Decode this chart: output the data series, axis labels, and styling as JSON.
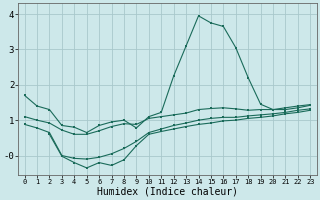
{
  "bg_color": "#cde8ea",
  "grid_color": "#a8c8cc",
  "line_color": "#1a6b5a",
  "xlabel": "Humidex (Indice chaleur)",
  "xlim": [
    -0.5,
    23.5
  ],
  "ylim": [
    -0.55,
    4.3
  ],
  "yticks": [
    0,
    1,
    2,
    3,
    4
  ],
  "ytick_labels": [
    "-0",
    "1",
    "2",
    "3",
    "4"
  ],
  "series": [
    {
      "x": [
        0,
        1,
        2,
        3,
        4,
        5,
        6,
        7,
        8,
        9,
        10,
        11,
        12,
        13,
        14,
        15,
        16,
        17,
        18,
        19,
        20,
        21,
        22,
        23
      ],
      "y": [
        1.7,
        1.4,
        1.3,
        0.85,
        0.8,
        0.65,
        0.85,
        0.95,
        1.0,
        0.78,
        1.1,
        1.22,
        2.25,
        3.1,
        3.95,
        3.75,
        3.65,
        3.05,
        2.2,
        1.45,
        1.3,
        1.3,
        1.35,
        1.42
      ]
    },
    {
      "x": [
        0,
        1,
        2,
        3,
        4,
        5,
        6,
        7,
        8,
        9,
        10,
        11,
        12,
        13,
        14,
        15,
        16,
        17,
        18,
        19,
        20,
        21,
        22,
        23
      ],
      "y": [
        1.1,
        1.0,
        0.92,
        0.72,
        0.6,
        0.6,
        0.7,
        0.82,
        0.9,
        0.88,
        1.05,
        1.1,
        1.15,
        1.2,
        1.3,
        1.33,
        1.35,
        1.32,
        1.28,
        1.3,
        1.3,
        1.35,
        1.4,
        1.44
      ]
    },
    {
      "x": [
        0,
        1,
        2,
        3,
        4,
        5,
        6,
        7,
        8,
        9,
        10,
        11,
        12,
        13,
        14,
        15,
        16,
        17,
        18,
        19,
        20,
        21,
        22,
        23
      ],
      "y": [
        0.88,
        0.78,
        0.65,
        0.0,
        -0.08,
        -0.1,
        -0.05,
        0.05,
        0.2,
        0.4,
        0.65,
        0.75,
        0.85,
        0.92,
        1.0,
        1.05,
        1.08,
        1.08,
        1.12,
        1.15,
        1.18,
        1.22,
        1.28,
        1.32
      ]
    },
    {
      "x": [
        2,
        3,
        4,
        5,
        6,
        7,
        8,
        9,
        10,
        11,
        12,
        13,
        14,
        15,
        16,
        17,
        18,
        19,
        20,
        21,
        22,
        23
      ],
      "y": [
        0.6,
        -0.02,
        -0.2,
        -0.35,
        -0.2,
        -0.28,
        -0.12,
        0.28,
        0.6,
        0.68,
        0.75,
        0.82,
        0.88,
        0.92,
        0.98,
        1.0,
        1.05,
        1.08,
        1.12,
        1.18,
        1.22,
        1.28
      ]
    }
  ]
}
